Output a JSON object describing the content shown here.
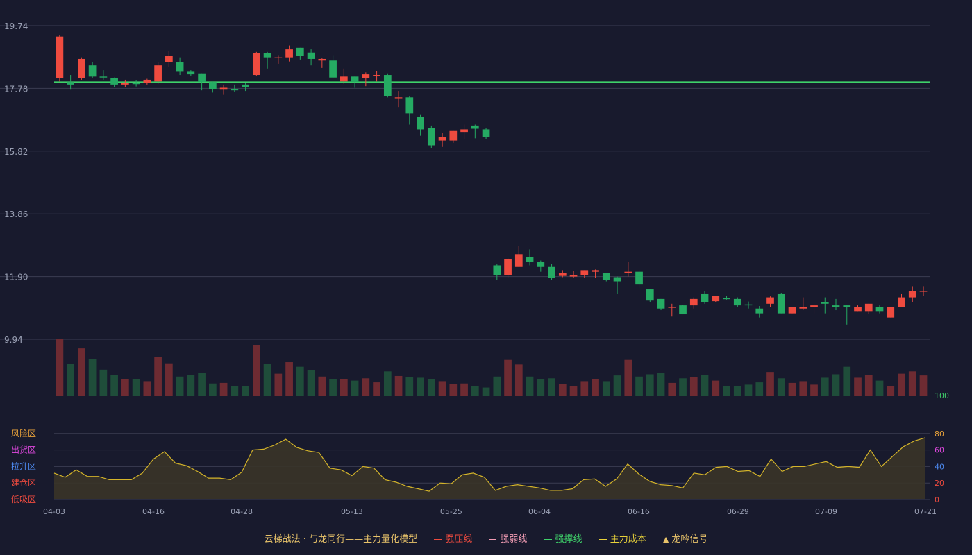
{
  "chart_data": [
    {
      "type": "candlestick",
      "y_ticks": [
        "19.74",
        "17.78",
        "15.82",
        "13.86",
        "11.90",
        "9.94"
      ],
      "ylim": [
        9.94,
        19.74
      ],
      "support_line": 17.98,
      "support_color": "#3fd16a",
      "up_color": "#ef4b3f",
      "down_color": "#25ab63",
      "candles": [
        [
          18.1,
          19.4,
          19.45,
          18.0
        ],
        [
          17.98,
          17.9,
          18.2,
          17.74
        ],
        [
          18.1,
          18.7,
          18.75,
          18.05
        ],
        [
          18.5,
          18.15,
          18.6,
          18.1
        ],
        [
          18.15,
          18.12,
          18.35,
          18.05
        ],
        [
          18.1,
          17.9,
          18.12,
          17.82
        ],
        [
          17.9,
          17.95,
          18.05,
          17.82
        ],
        [
          17.94,
          17.92,
          18.03,
          17.84
        ],
        [
          17.96,
          18.05,
          18.08,
          17.9
        ],
        [
          18.0,
          18.5,
          18.6,
          17.92
        ],
        [
          18.6,
          18.8,
          18.95,
          18.45
        ],
        [
          18.6,
          18.3,
          18.75,
          18.2
        ],
        [
          18.3,
          18.22,
          18.35,
          18.18
        ],
        [
          18.25,
          17.98,
          18.25,
          17.72
        ],
        [
          17.98,
          17.75,
          18.0,
          17.65
        ],
        [
          17.74,
          17.8,
          17.9,
          17.58
        ],
        [
          17.76,
          17.72,
          17.9,
          17.68
        ],
        [
          17.9,
          17.82,
          17.95,
          17.7
        ],
        [
          18.2,
          18.88,
          18.92,
          18.18
        ],
        [
          18.88,
          18.75,
          18.92,
          18.4
        ],
        [
          18.75,
          18.75,
          18.82,
          18.55
        ],
        [
          18.75,
          19.0,
          19.12,
          18.62
        ],
        [
          19.05,
          18.8,
          19.05,
          18.68
        ],
        [
          18.9,
          18.7,
          19.0,
          18.5
        ],
        [
          18.65,
          18.7,
          18.72,
          18.42
        ],
        [
          18.65,
          18.12,
          18.82,
          18.1
        ],
        [
          18.0,
          18.15,
          18.4,
          17.92
        ],
        [
          18.15,
          17.98,
          18.15,
          17.8
        ],
        [
          18.1,
          18.22,
          18.28,
          17.85
        ],
        [
          18.2,
          18.2,
          18.32,
          18.0
        ],
        [
          18.2,
          17.55,
          18.25,
          17.5
        ],
        [
          17.5,
          17.5,
          17.7,
          17.2
        ],
        [
          17.5,
          17.0,
          17.55,
          16.65
        ],
        [
          16.9,
          16.5,
          16.95,
          16.3
        ],
        [
          16.55,
          16.0,
          16.62,
          15.92
        ],
        [
          16.15,
          16.25,
          16.38,
          15.95
        ],
        [
          16.15,
          16.45,
          16.45,
          16.08
        ],
        [
          16.42,
          16.5,
          16.65,
          16.2
        ],
        [
          16.62,
          16.52,
          16.65,
          16.22
        ],
        [
          16.5,
          16.25,
          16.55,
          16.2
        ],
        [
          12.25,
          11.95,
          12.28,
          11.8
        ],
        [
          11.95,
          12.45,
          12.48,
          11.85
        ],
        [
          12.2,
          12.6,
          12.85,
          12.2
        ],
        [
          12.5,
          12.35,
          12.75,
          12.25
        ],
        [
          12.35,
          12.2,
          12.4,
          12.05
        ],
        [
          12.2,
          11.85,
          12.3,
          11.8
        ],
        [
          11.92,
          12.0,
          12.1,
          11.88
        ],
        [
          11.9,
          11.95,
          12.08,
          11.85
        ],
        [
          11.95,
          12.1,
          12.1,
          11.85
        ],
        [
          12.05,
          12.1,
          12.12,
          11.85
        ],
        [
          12.0,
          11.8,
          12.02,
          11.75
        ],
        [
          11.88,
          11.75,
          11.9,
          11.35
        ],
        [
          12.0,
          12.05,
          12.35,
          11.9
        ],
        [
          12.05,
          11.65,
          12.1,
          11.55
        ],
        [
          11.5,
          11.15,
          11.52,
          11.1
        ],
        [
          11.2,
          10.9,
          11.2,
          10.85
        ],
        [
          10.95,
          10.95,
          11.05,
          10.65
        ],
        [
          11.0,
          10.72,
          11.02,
          10.72
        ],
        [
          11.0,
          11.2,
          11.25,
          10.9
        ],
        [
          11.35,
          11.1,
          11.45,
          11.05
        ],
        [
          11.13,
          11.3,
          11.3,
          11.1
        ],
        [
          11.22,
          11.2,
          11.3,
          11.18
        ],
        [
          11.2,
          11.0,
          11.25,
          10.95
        ],
        [
          11.03,
          11.0,
          11.12,
          10.9
        ],
        [
          10.9,
          10.75,
          10.98,
          10.62
        ],
        [
          11.05,
          11.25,
          11.28,
          10.95
        ],
        [
          11.35,
          10.75,
          11.38,
          10.75
        ],
        [
          10.75,
          10.95,
          10.95,
          10.75
        ],
        [
          10.9,
          10.95,
          11.25,
          10.85
        ],
        [
          10.95,
          11.0,
          11.05,
          10.75
        ],
        [
          11.1,
          11.05,
          11.25,
          10.75
        ],
        [
          11.0,
          10.95,
          11.2,
          10.85
        ],
        [
          11.0,
          10.95,
          11.0,
          10.4
        ],
        [
          10.8,
          10.95,
          11.0,
          10.8
        ],
        [
          10.8,
          11.05,
          11.05,
          10.72
        ],
        [
          10.95,
          10.8,
          11.0,
          10.75
        ],
        [
          10.62,
          10.95,
          10.95,
          10.62
        ],
        [
          10.95,
          11.25,
          11.35,
          10.95
        ],
        [
          11.25,
          11.45,
          11.6,
          11.1
        ],
        [
          11.45,
          11.45,
          11.6,
          11.3
        ]
      ],
      "volumes": [
        100,
        56,
        83,
        64,
        46,
        37,
        30,
        30,
        26,
        68,
        57,
        34,
        37,
        40,
        22,
        23,
        18,
        18,
        89,
        56,
        39,
        59,
        51,
        45,
        34,
        30,
        30,
        27,
        31,
        24,
        43,
        35,
        33,
        32,
        29,
        26,
        21,
        22,
        17,
        15,
        34,
        63,
        55,
        34,
        29,
        31,
        21,
        17,
        26,
        30,
        26,
        36,
        63,
        34,
        38,
        40,
        23,
        31,
        33,
        37,
        27,
        18,
        18,
        20,
        24,
        42,
        31,
        23,
        26,
        20,
        32,
        38,
        51,
        32,
        37,
        27,
        18,
        39,
        43,
        36
      ]
    },
    {
      "type": "area",
      "x_ticks": [
        "04-03",
        "04-16",
        "04-28",
        "05-13",
        "05-25",
        "06-04",
        "06-16",
        "06-29",
        "07-09",
        "07-21"
      ],
      "y_ticks": [
        "0",
        "20",
        "40",
        "60",
        "80",
        "100"
      ],
      "ylim": [
        0,
        100
      ],
      "zones": [
        "低吸区",
        "建仓区",
        "拉升区",
        "出货区",
        "风险区"
      ],
      "zone_colors": [
        "#ef4b3f",
        "#ef4b3f",
        "#4f8ef7",
        "#e048e0",
        "#e8a23a"
      ],
      "values": [
        32,
        27,
        36,
        28,
        28,
        24,
        24,
        24,
        32,
        49,
        58,
        44,
        41,
        34,
        26,
        26,
        24,
        33,
        60,
        61,
        66,
        73,
        63,
        59,
        57,
        38,
        36,
        29,
        40,
        38,
        24,
        21,
        16,
        13,
        10,
        20,
        19,
        30,
        32,
        27,
        11,
        16,
        18,
        16,
        14,
        11,
        11,
        13,
        24,
        25,
        16,
        25,
        43,
        31,
        22,
        18,
        17,
        14,
        32,
        30,
        39,
        40,
        34,
        35,
        28,
        49,
        34,
        40,
        40,
        43,
        46,
        39,
        40,
        39,
        60,
        40,
        52,
        64,
        71,
        75
      ]
    },
    {
      "type": "legend",
      "title": "云梯战法 · 与龙同行——主力量化模型",
      "entries": [
        {
          "label": "强压线",
          "color": "#ef4b3f",
          "style": "solid"
        },
        {
          "label": "强弱线",
          "color": "#f29cb4",
          "style": "dash"
        },
        {
          "label": "强撑线",
          "color": "#3fd16a",
          "style": "solid"
        },
        {
          "label": "主力成本",
          "color": "#e8d23a",
          "style": "dash"
        },
        {
          "label": "龙吟信号",
          "color": "#e8c36a",
          "style": "triangle"
        }
      ]
    }
  ],
  "theme": {
    "background": "#181a2d",
    "grid": "#3a3c52",
    "axis_text": "#9aa0b4",
    "area_line": "#d4b42a",
    "area_fill": "#3a3428",
    "vol_up": "#6e2b32",
    "vol_down": "#1f4d3a",
    "tick_100_color": "#3fd16a"
  }
}
